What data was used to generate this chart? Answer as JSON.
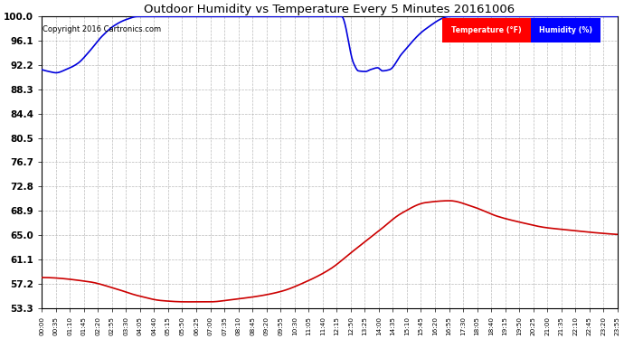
{
  "title": "Outdoor Humidity vs Temperature Every 5 Minutes 20161006",
  "copyright_text": "Copyright 2016 Cartronics.com",
  "legend_temp_label": "Temperature (°F)",
  "legend_hum_label": "Humidity (%)",
  "temp_color": "#cc0000",
  "hum_color": "#0000dd",
  "background_color": "#ffffff",
  "grid_color": "#aaaaaa",
  "ylim": [
    53.3,
    100.0
  ],
  "yticks": [
    53.3,
    57.2,
    61.1,
    65.0,
    68.9,
    72.8,
    76.7,
    80.5,
    84.4,
    88.3,
    92.2,
    96.1,
    100.0
  ],
  "x_labels": [
    "00:00",
    "00:35",
    "01:10",
    "01:45",
    "02:20",
    "02:55",
    "03:30",
    "04:05",
    "04:40",
    "05:15",
    "05:50",
    "06:25",
    "07:00",
    "07:35",
    "08:10",
    "08:45",
    "09:20",
    "09:55",
    "10:30",
    "11:05",
    "11:40",
    "12:15",
    "12:50",
    "13:25",
    "14:00",
    "14:35",
    "15:10",
    "15:45",
    "16:20",
    "16:55",
    "17:30",
    "18:05",
    "18:40",
    "19:15",
    "19:50",
    "20:25",
    "21:00",
    "21:35",
    "22:10",
    "22:45",
    "23:20",
    "23:55"
  ],
  "temp_keypoints_x": [
    0,
    2,
    3,
    4,
    5,
    6,
    7,
    8,
    9,
    10,
    11,
    12,
    13,
    14,
    15,
    16,
    17,
    18,
    19,
    20,
    21,
    22,
    23,
    24
  ],
  "temp_keypoints_y": [
    58.2,
    57.5,
    56.5,
    55.3,
    54.5,
    54.3,
    54.3,
    54.7,
    55.2,
    56.0,
    57.5,
    59.5,
    62.5,
    65.5,
    68.5,
    70.2,
    70.5,
    69.5,
    68.0,
    67.0,
    66.2,
    65.8,
    65.4,
    65.1
  ],
  "hum_keypoints_x": [
    0,
    0.3,
    0.6,
    1.0,
    1.5,
    2.0,
    2.5,
    3.0,
    3.5,
    4.0,
    4.5,
    12.5,
    13.0,
    13.2,
    13.5,
    13.7,
    14.0,
    14.2,
    14.5,
    15.0,
    16.0,
    17.0,
    18.0,
    24
  ],
  "hum_keypoints_y": [
    91.5,
    91.2,
    91.0,
    91.5,
    92.5,
    94.5,
    96.8,
    98.5,
    99.5,
    100.0,
    100.0,
    100.0,
    92.5,
    91.3,
    91.2,
    91.5,
    91.8,
    91.3,
    91.5,
    94.0,
    98.0,
    100.0,
    100.0,
    100.0
  ],
  "n_total_hours": 24,
  "n_labels": 42
}
